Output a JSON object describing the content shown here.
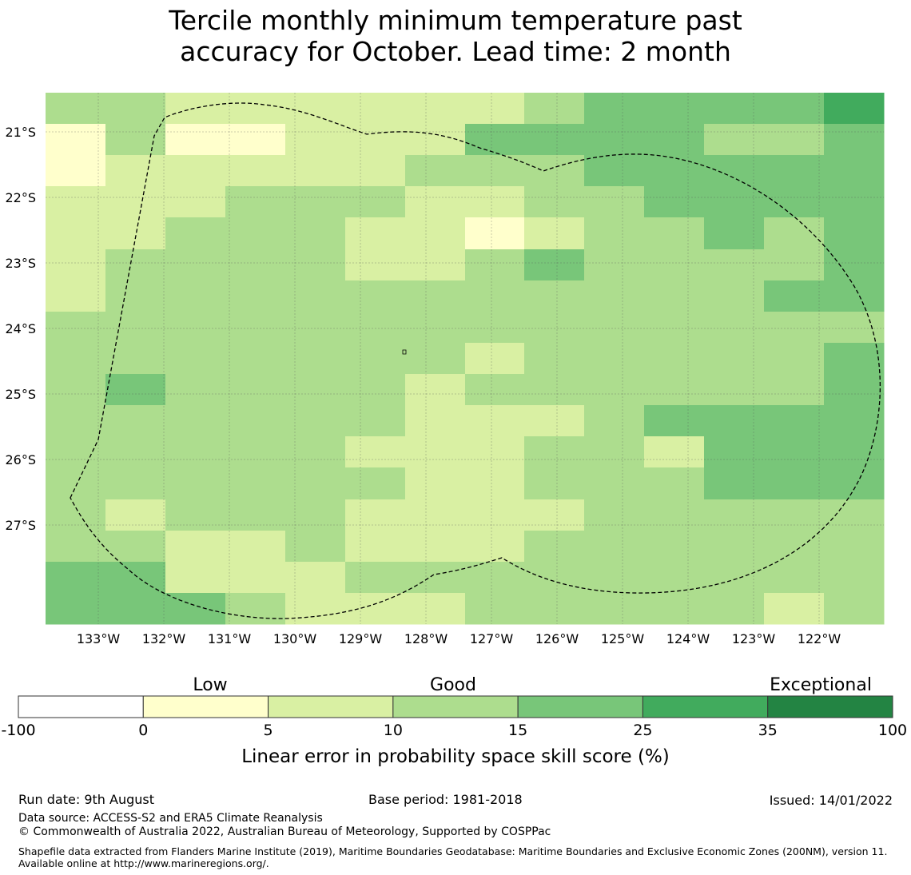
{
  "title_line1": "Tercile monthly minimum temperature past",
  "title_line2": "accuracy for October. Lead time: 2 month",
  "map": {
    "lat_labels": [
      "21°S",
      "22°S",
      "23°S",
      "24°S",
      "25°S",
      "26°S",
      "27°S"
    ],
    "lon_labels": [
      "133°W",
      "132°W",
      "131°W",
      "130°W",
      "129°W",
      "128°W",
      "127°W",
      "126°W",
      "125°W",
      "124°W",
      "123°W",
      "122°W"
    ],
    "grid_rows": [
      "33222222344445",
      "13112224444334",
      "12222233344444",
      "22233322334444",
      "22333221233434",
      "23333223433334",
      "23333333333344",
      "33333333333333",
      "33333332333334",
      "34333323333334",
      "33333322234444",
      "33333222332444",
      "33333322333444",
      "32333222233333",
      "33223222333333",
      "44222333333333",
      "44432223333323"
    ],
    "category_colors": [
      "#ffffff",
      "#ffffcc",
      "#d9f0a3",
      "#addd8e",
      "#78c679",
      "#41ab5d",
      "#238443"
    ]
  },
  "legend": {
    "group_labels": [
      "Low",
      "Good",
      "Exceptional"
    ],
    "tick_labels": [
      "-100",
      "0",
      "5",
      "10",
      "15",
      "25",
      "35",
      "100"
    ],
    "colors": [
      "#ffffff",
      "#ffffcc",
      "#d9f0a3",
      "#addd8e",
      "#78c679",
      "#41ab5d",
      "#238443"
    ],
    "axis_label": "Linear error in probability space skill score (%)"
  },
  "footer": {
    "run_date": "Run date: 9th August",
    "base_period": "Base period: 1981-2018",
    "issued": "Issued: 14/01/2022",
    "data_source": "Data source: ACCESS-S2 and ERA5 Climate Reanalysis",
    "copyright": "© Commonwealth of Australia 2022, Australian Bureau of Meteorology, Supported by COSPPac",
    "shapefile": "Shapefile data extracted from Flanders Marine Institute (2019), Maritime Boundaries Geodatabase: Maritime Boundaries and Exclusive Economic Zones (200NM), version 11. Available online at http://www.marineregions.org/."
  }
}
